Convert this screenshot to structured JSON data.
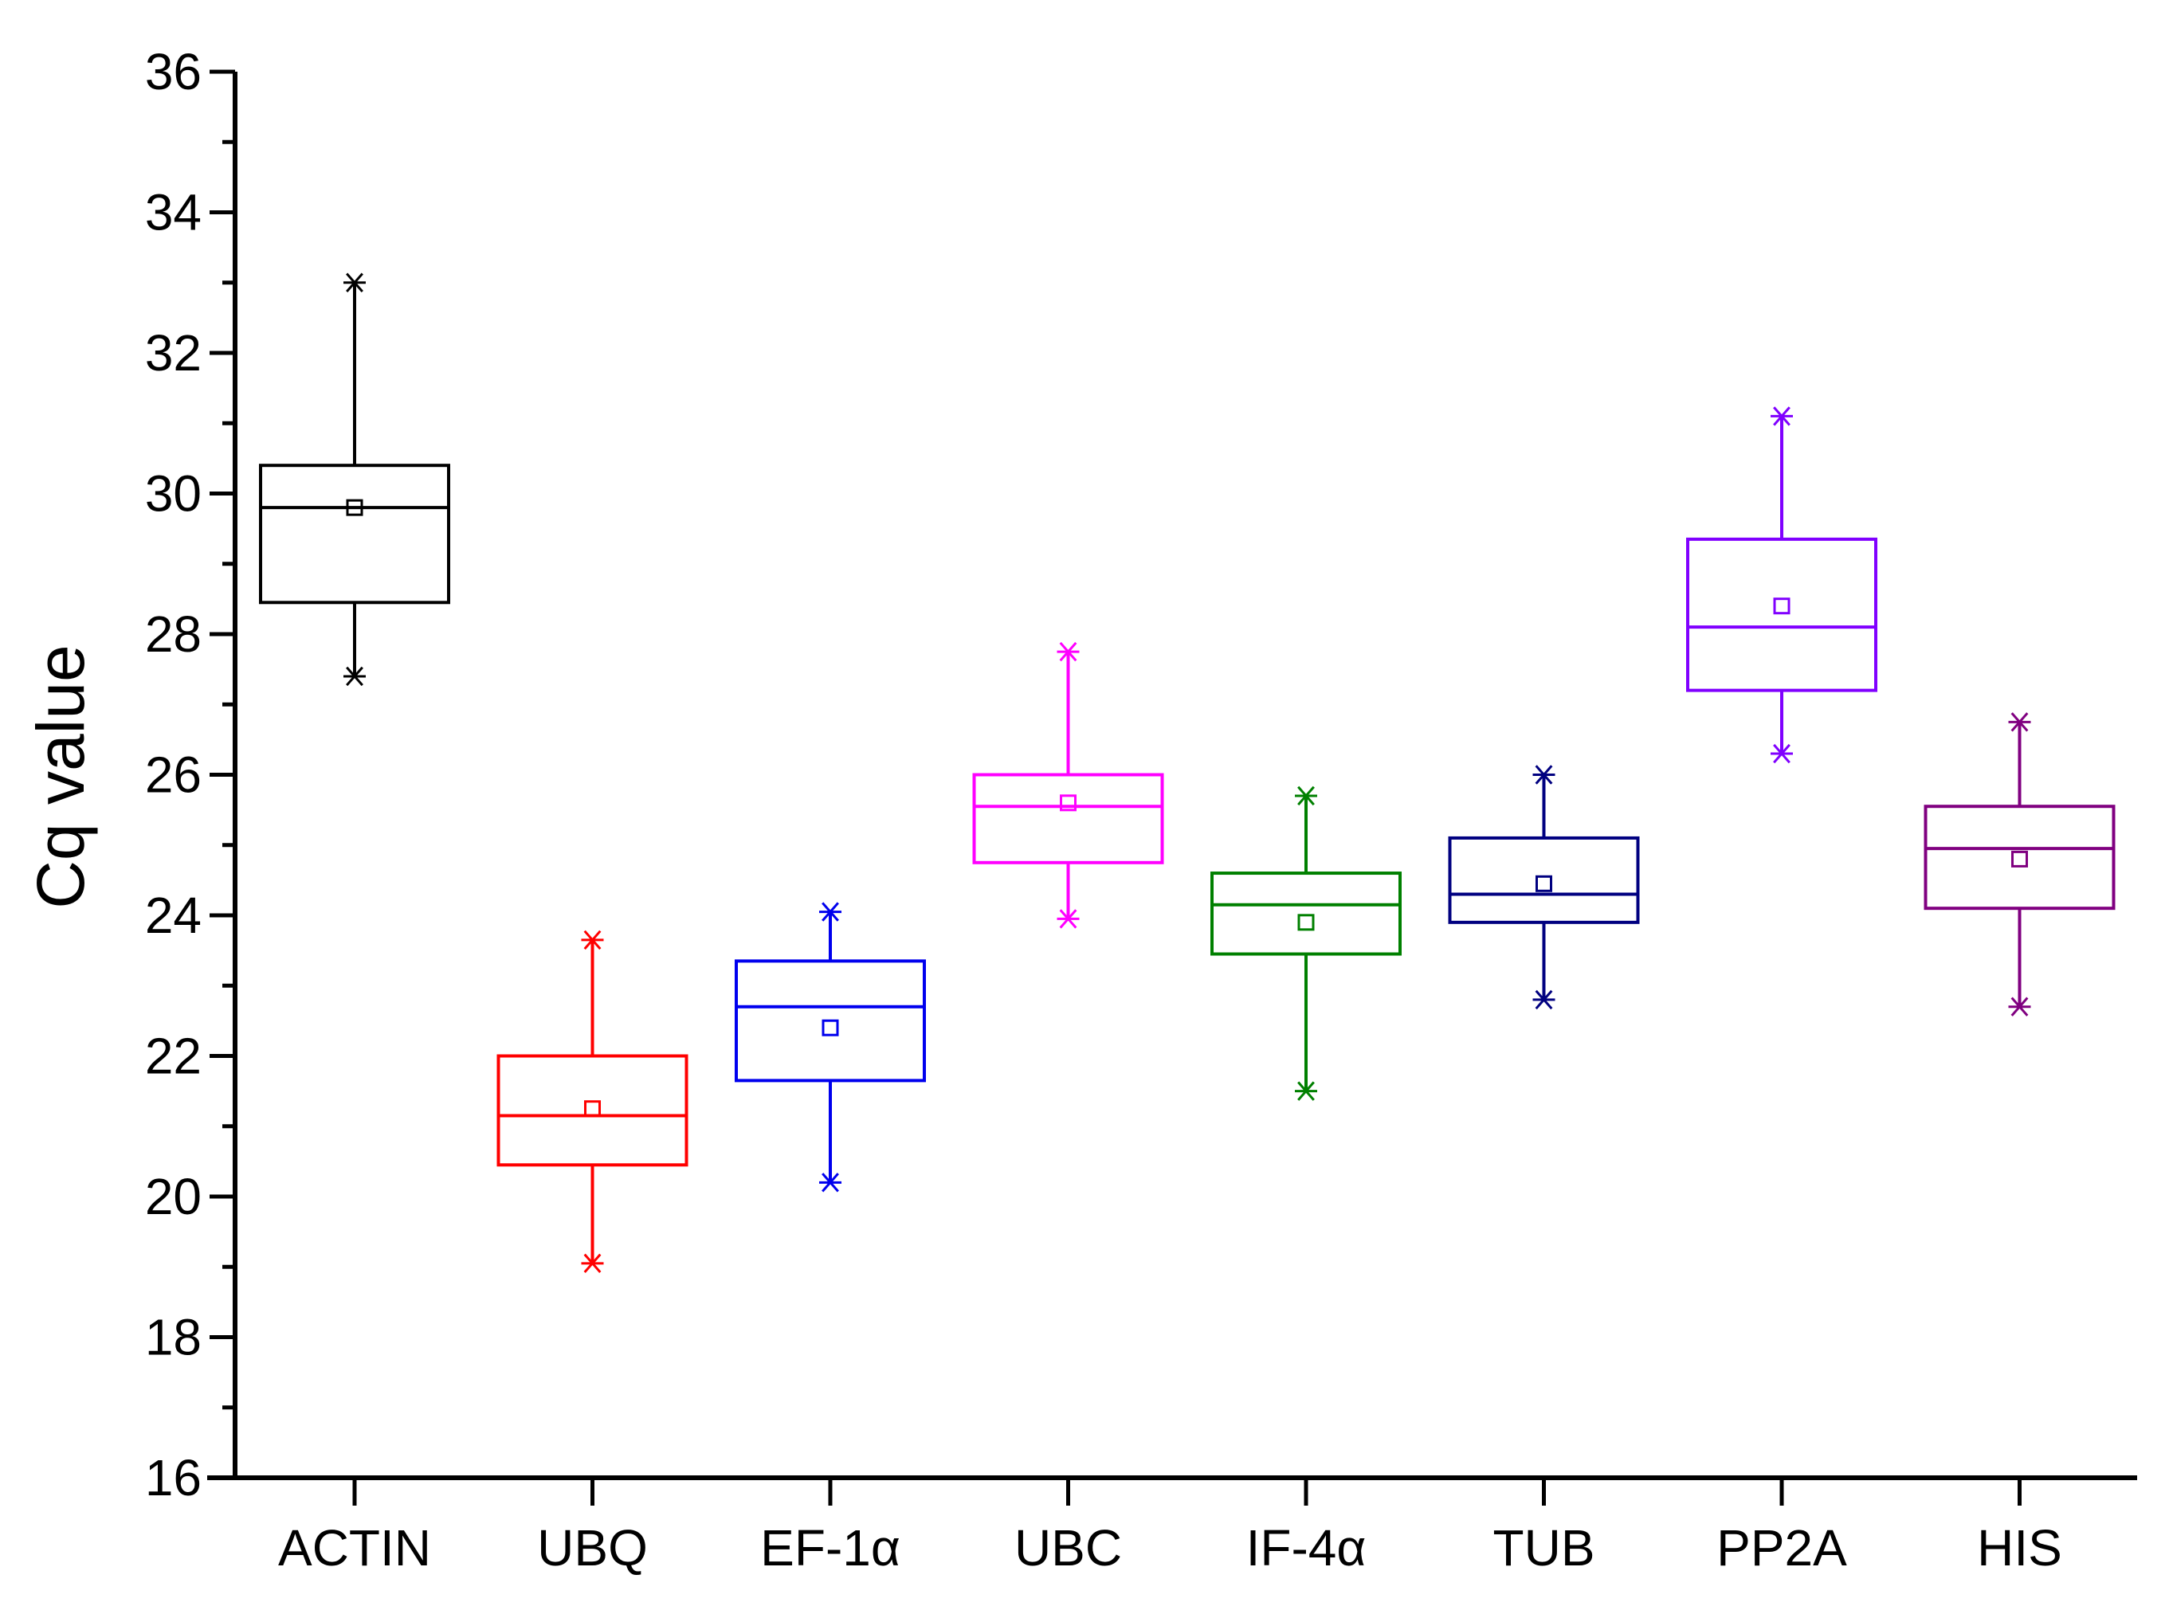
{
  "chart_data": {
    "type": "box",
    "title": "",
    "xlabel": "",
    "ylabel": "Cq value",
    "ylim": [
      16,
      36
    ],
    "yticks": [
      "16",
      "18",
      "20",
      "22",
      "24",
      "26",
      "28",
      "30",
      "32",
      "34",
      "36"
    ],
    "categories": [
      "ACTIN",
      "UBQ",
      "EF-1α",
      "UBC",
      "IF-4α",
      "TUB",
      "PP2A",
      "HIS"
    ],
    "boxes": [
      {
        "name": "ACTIN",
        "color": "#000000",
        "min": 27.4,
        "q1": 28.45,
        "median": 29.8,
        "q3": 30.4,
        "max": 33.0,
        "mean": 29.8
      },
      {
        "name": "UBQ",
        "color": "#ff0000",
        "min": 19.05,
        "q1": 20.45,
        "median": 21.15,
        "q3": 22.0,
        "max": 23.65,
        "mean": 21.25
      },
      {
        "name": "EF-1α",
        "color": "#0000ee",
        "min": 20.2,
        "q1": 21.65,
        "median": 22.7,
        "q3": 23.35,
        "max": 24.05,
        "mean": 22.4
      },
      {
        "name": "UBC",
        "color": "#ff00ff",
        "min": 23.95,
        "q1": 24.75,
        "median": 25.55,
        "q3": 26.0,
        "max": 27.75,
        "mean": 25.6
      },
      {
        "name": "IF-4α",
        "color": "#008000",
        "min": 21.5,
        "q1": 23.45,
        "median": 24.15,
        "q3": 24.6,
        "max": 25.7,
        "mean": 23.9
      },
      {
        "name": "TUB",
        "color": "#000080",
        "min": 22.8,
        "q1": 23.9,
        "median": 24.3,
        "q3": 25.1,
        "max": 26.0,
        "mean": 24.45
      },
      {
        "name": "PP2A",
        "color": "#8000ff",
        "min": 26.3,
        "q1": 27.2,
        "median": 28.1,
        "q3": 29.35,
        "max": 31.1,
        "mean": 28.4
      },
      {
        "name": "HIS",
        "color": "#800080",
        "min": 22.7,
        "q1": 24.1,
        "median": 24.95,
        "q3": 25.55,
        "max": 26.75,
        "mean": 24.8
      }
    ]
  }
}
